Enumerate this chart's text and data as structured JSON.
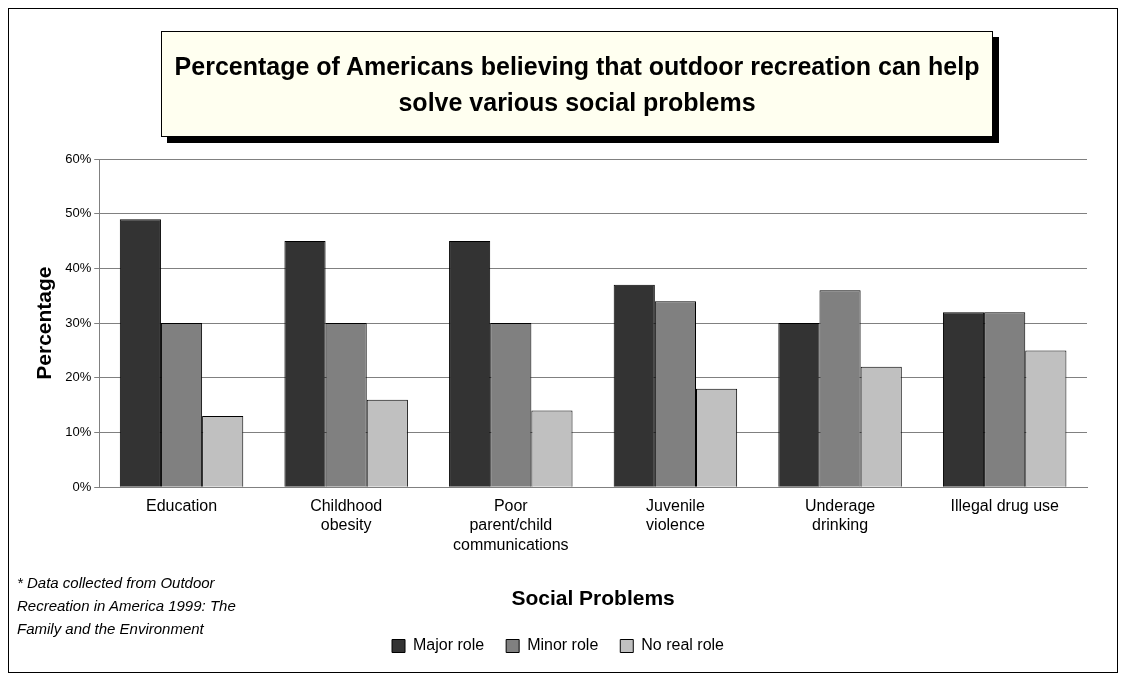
{
  "chart_data": {
    "type": "bar",
    "title": "Percentage of Americans believing that outdoor recreation can help solve various social problems",
    "xlabel": "Social Problems",
    "ylabel": "Percentage",
    "categories": [
      "Education",
      "Childhood obesity",
      "Poor parent/child communications",
      "Juvenile violence",
      "Underage drinking",
      "Illegal drug use"
    ],
    "series": [
      {
        "name": "Major role",
        "color": "#333333",
        "values": [
          49,
          45,
          45,
          37,
          30,
          32
        ]
      },
      {
        "name": "Minor role",
        "color": "#808080",
        "values": [
          30,
          30,
          30,
          34,
          36,
          32
        ]
      },
      {
        "name": "No real role",
        "color": "#c0c0c0",
        "values": [
          13,
          16,
          14,
          18,
          22,
          25
        ]
      }
    ],
    "ylim": [
      0,
      60
    ],
    "yticks": [
      {
        "value": 0,
        "label": "0%"
      },
      {
        "value": 10,
        "label": "10%"
      },
      {
        "value": 20,
        "label": "20%"
      },
      {
        "value": 30,
        "label": "30%"
      },
      {
        "value": 40,
        "label": "40%"
      },
      {
        "value": 50,
        "label": "50%"
      },
      {
        "value": 60,
        "label": "60%"
      }
    ],
    "grid": "y",
    "legend": "bottom",
    "annotations": [
      "* Data collected from Outdoor Recreation in America 1999: The Family and the Environment"
    ]
  }
}
